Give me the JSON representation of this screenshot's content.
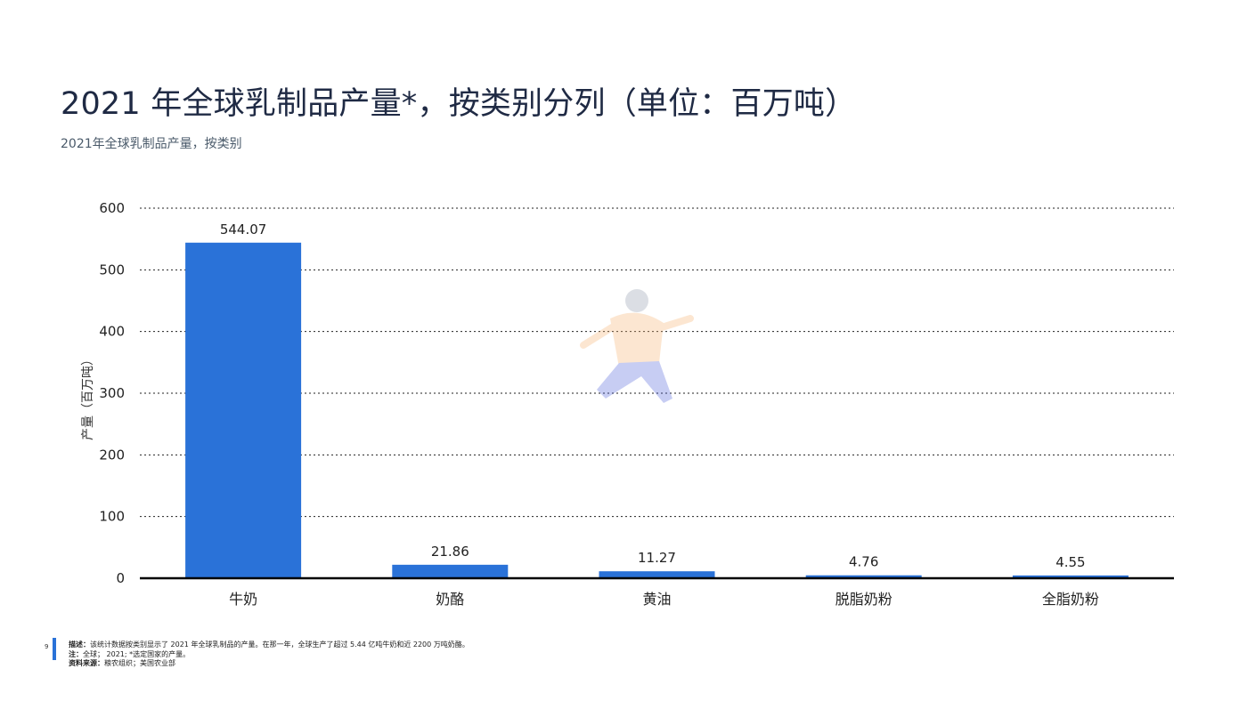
{
  "title": "2021 年全球乳制品产量*，按类别分列（单位：百万吨）",
  "subtitle": "2021年全球乳制品产量，按类别",
  "footer": {
    "page_number": "9",
    "description_label": "描述：",
    "description": "该统计数据按类别显示了 2021 年全球乳制品的产量。在那一年，全球生产了超过 5.44 亿吨牛奶和近 2200 万吨奶酪。",
    "note_label": "注：",
    "note": "全球； 2021; *选定国家的产量。",
    "source_label": "资料来源：",
    "source": "粮农组织；美国农业部"
  },
  "colors": {
    "bar": "#2a72d8",
    "axis": "#000000",
    "grid": "#222222"
  },
  "chart_data": {
    "type": "bar",
    "title": "2021 年全球乳制品产量*，按类别分列（单位：百万吨）",
    "ylabel": "产量（百万吨）",
    "xlabel": "",
    "ylim": [
      0,
      600
    ],
    "yticks": [
      0,
      100,
      200,
      300,
      400,
      500,
      600
    ],
    "grid": true,
    "categories": [
      "牛奶",
      "奶酪",
      "黄油",
      "脱脂奶粉",
      "全脂奶粉"
    ],
    "values": [
      544.07,
      21.86,
      11.27,
      4.76,
      4.55
    ],
    "value_labels": [
      "544.07",
      "21.86",
      "11.27",
      "4.76",
      "4.55"
    ]
  }
}
